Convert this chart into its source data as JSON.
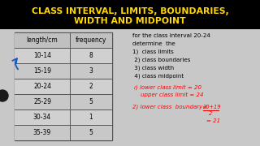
{
  "title_line1": "CLASS INTERVAL, LIMITS, BOUNDARIES,",
  "title_line2": "WIDTH AND MIDPOINT",
  "title_bg": "#000000",
  "title_color": "#FFD700",
  "table_headers": [
    "length/cm",
    "frequency"
  ],
  "table_rows": [
    [
      "10-14",
      "8"
    ],
    [
      "15-19",
      "3"
    ],
    [
      "20-24",
      "2"
    ],
    [
      "25-29",
      "5"
    ],
    [
      "30-34",
      "1"
    ],
    [
      "35-39",
      "5"
    ]
  ],
  "right_text_lines": [
    "for the class interval 20-24",
    "determine  the",
    "1)  class limits",
    " 2) class boundaries",
    " 3) class width",
    " 4) class midpoint"
  ],
  "bg_color": "#e8e8e8",
  "content_bg": "#d8d8d8",
  "table_border": "#555555",
  "table_row_bg": "#cccccc"
}
